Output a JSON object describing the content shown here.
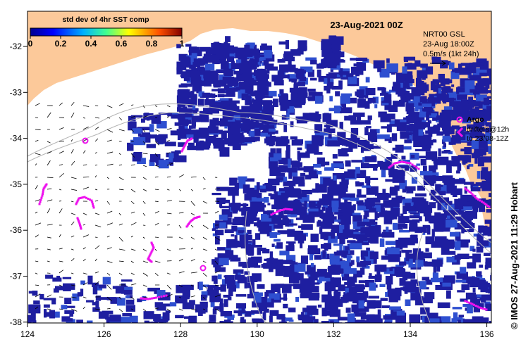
{
  "title": "23-Aug-2021 00Z",
  "colorbar": {
    "label": "std dev of 4hr SST comp",
    "ticks": [
      "0",
      "0.2",
      "0.4",
      "0.6",
      "0.8",
      "1"
    ]
  },
  "current_legend": {
    "line1": "NRT00 GSL",
    "line2": "23-Aug 18:00Z",
    "line3": "0.5m/s (1kt 24h)"
  },
  "argo_legend": {
    "argo": "Argo",
    "drifters1": "drifters@12h",
    "drifters2": "to 23/08-12Z"
  },
  "credit": "© IMOS 27-Aug-2021 11:29 Hobart",
  "axes": {
    "x_ticks": [
      "124",
      "126",
      "128",
      "130",
      "132",
      "134",
      "136"
    ],
    "y_ticks": [
      "-32",
      "-33",
      "-34",
      "-35",
      "-36",
      "-37",
      "-38"
    ]
  },
  "colors": {
    "land": "#FCC99A",
    "data_main": "#1E1EA0",
    "data_light": "#2E4FD0",
    "drifter": "#EE11EE",
    "contour": "#B4B4B4"
  }
}
